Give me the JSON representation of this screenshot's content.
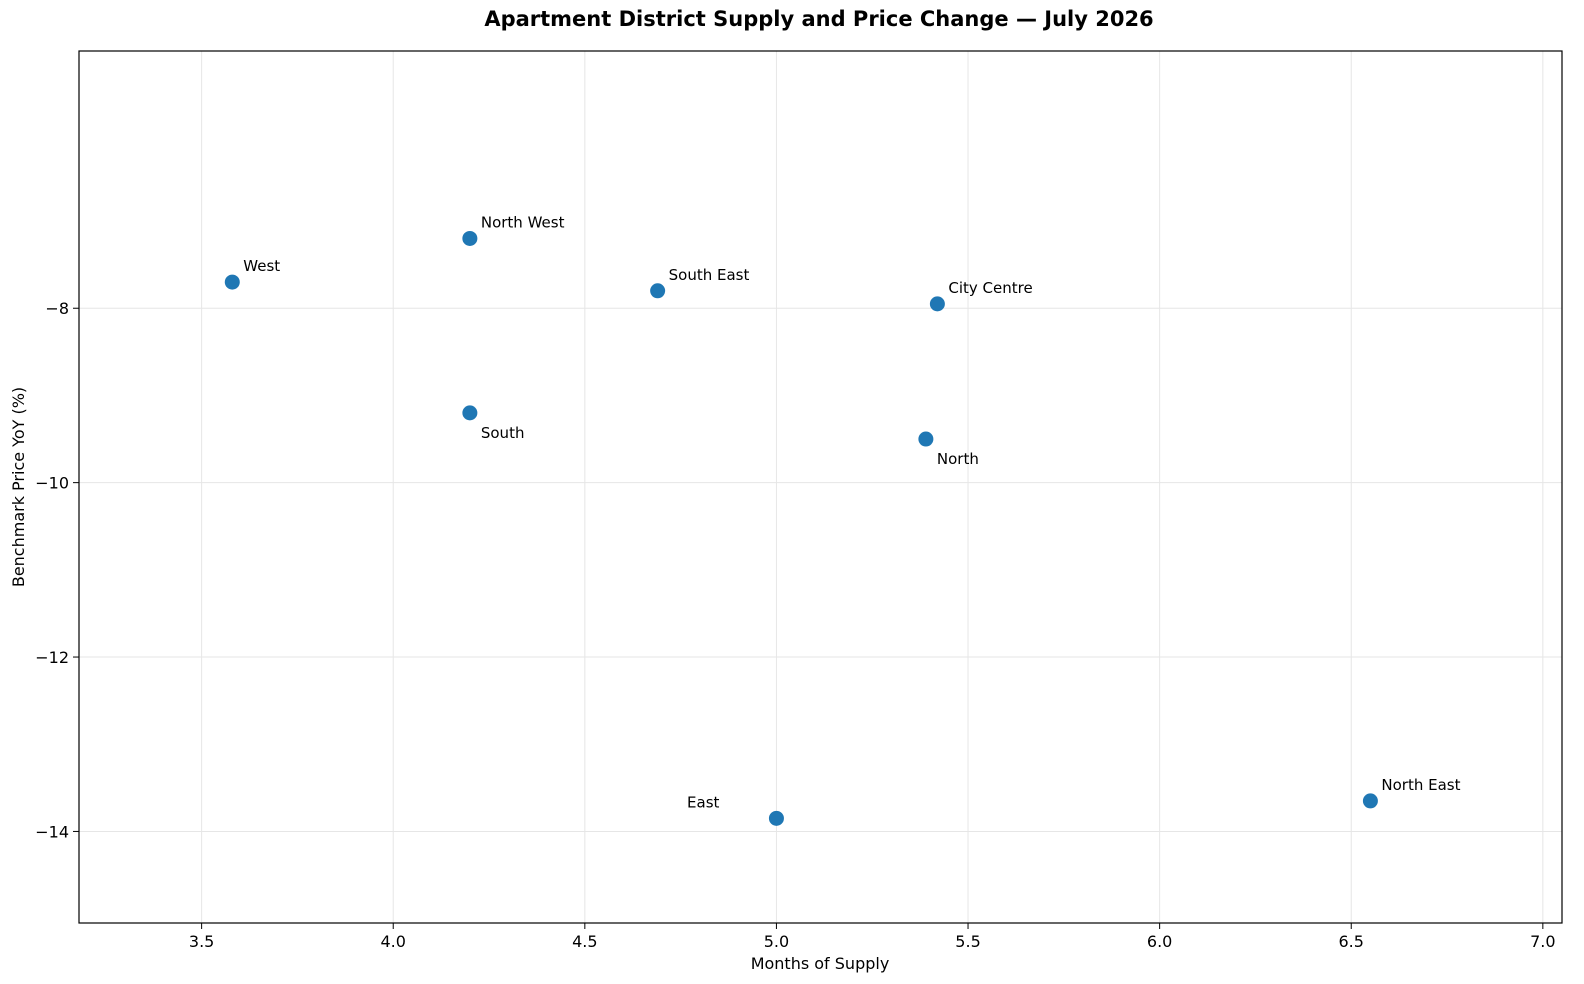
{
  "chart_data": {
    "type": "scatter",
    "title": "Apartment District Supply and Price Change — July 2026",
    "xlabel": "Months of Supply",
    "ylabel": "Benchmark Price YoY (%)",
    "xlim": [
      3.18,
      7.05
    ],
    "ylim": [
      -15.05,
      -5.05
    ],
    "xticks": [
      3.5,
      4.0,
      4.5,
      5.0,
      5.5,
      6.0,
      6.5,
      7.0
    ],
    "xtick_labels": [
      "3.5",
      "4.0",
      "4.5",
      "5.0",
      "5.5",
      "6.0",
      "6.5",
      "7.0"
    ],
    "yticks": [
      -14,
      -12,
      -10,
      -8
    ],
    "ytick_labels": [
      "−14",
      "−12",
      "−10",
      "−8"
    ],
    "grid": true,
    "marker_color": "#1f77b4",
    "points": [
      {
        "label": "West",
        "x": 3.58,
        "y": -7.7,
        "label_pos": "above-right"
      },
      {
        "label": "North West",
        "x": 4.2,
        "y": -7.2,
        "label_pos": "above-right"
      },
      {
        "label": "South East",
        "x": 4.69,
        "y": -7.8,
        "label_pos": "above-right"
      },
      {
        "label": "City Centre",
        "x": 5.42,
        "y": -7.95,
        "label_pos": "above-right"
      },
      {
        "label": "South",
        "x": 4.2,
        "y": -9.2,
        "label_pos": "below-right"
      },
      {
        "label": "North",
        "x": 5.39,
        "y": -9.5,
        "label_pos": "below-right"
      },
      {
        "label": "East",
        "x": 5.0,
        "y": -13.85,
        "label_pos": "above-left"
      },
      {
        "label": "North East",
        "x": 6.55,
        "y": -13.65,
        "label_pos": "above-right"
      }
    ]
  }
}
